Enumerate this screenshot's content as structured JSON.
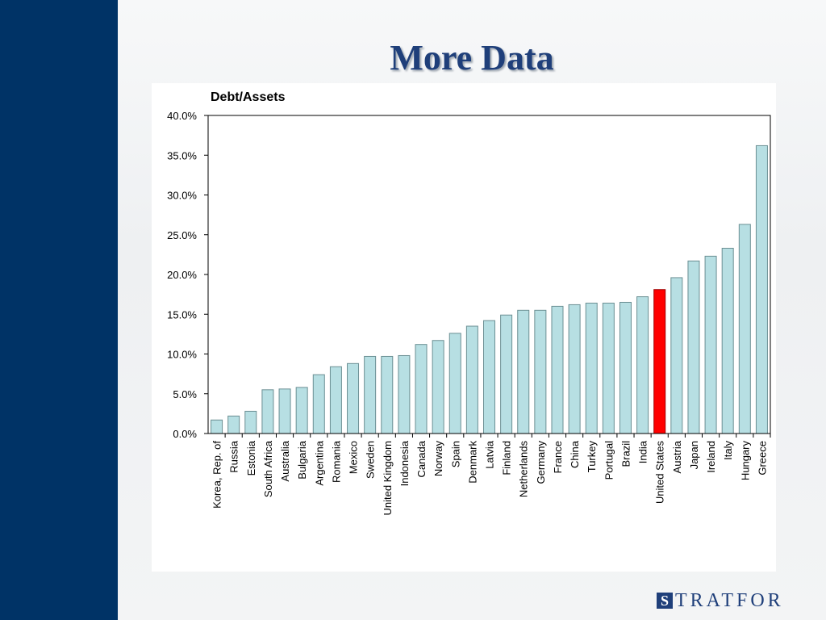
{
  "slide": {
    "title": "More Data"
  },
  "logo": {
    "mark": "S",
    "text": "TRATFOR"
  },
  "colors": {
    "band": "#003366",
    "bar": "#b7dfe3",
    "bar_highlight": "#ff0000",
    "bar_stroke": "#6b8f93"
  },
  "chart_data": {
    "type": "bar",
    "title": "Debt/Assets",
    "xlabel": "",
    "ylabel": "",
    "ylim": [
      0,
      40
    ],
    "yticks": [
      "0.0%",
      "5.0%",
      "10.0%",
      "15.0%",
      "20.0%",
      "25.0%",
      "30.0%",
      "35.0%",
      "40.0%"
    ],
    "grid": false,
    "legend": "none",
    "highlight": "United States",
    "categories": [
      "Korea, Rep. of",
      "Russia",
      "Estonia",
      "South Africa",
      "Australia",
      "Bulgaria",
      "Argentina",
      "Romania",
      "Mexico",
      "Sweden",
      "United Kingdom",
      "Indonesia",
      "Canada",
      "Norway",
      "Spain",
      "Denmark",
      "Latvia",
      "Finland",
      "Netherlands",
      "Germany",
      "France",
      "China",
      "Turkey",
      "Portugal",
      "Brazil",
      "India",
      "United States",
      "Austria",
      "Japan",
      "Ireland",
      "Italy",
      "Hungary",
      "Greece"
    ],
    "values": [
      1.7,
      2.2,
      2.8,
      5.5,
      5.6,
      5.8,
      7.4,
      8.4,
      8.8,
      9.7,
      9.7,
      9.8,
      11.2,
      11.7,
      12.6,
      13.5,
      14.2,
      14.9,
      15.5,
      15.5,
      16.0,
      16.2,
      16.4,
      16.4,
      16.5,
      17.2,
      18.1,
      19.6,
      21.7,
      22.3,
      23.3,
      26.3,
      36.2
    ]
  }
}
